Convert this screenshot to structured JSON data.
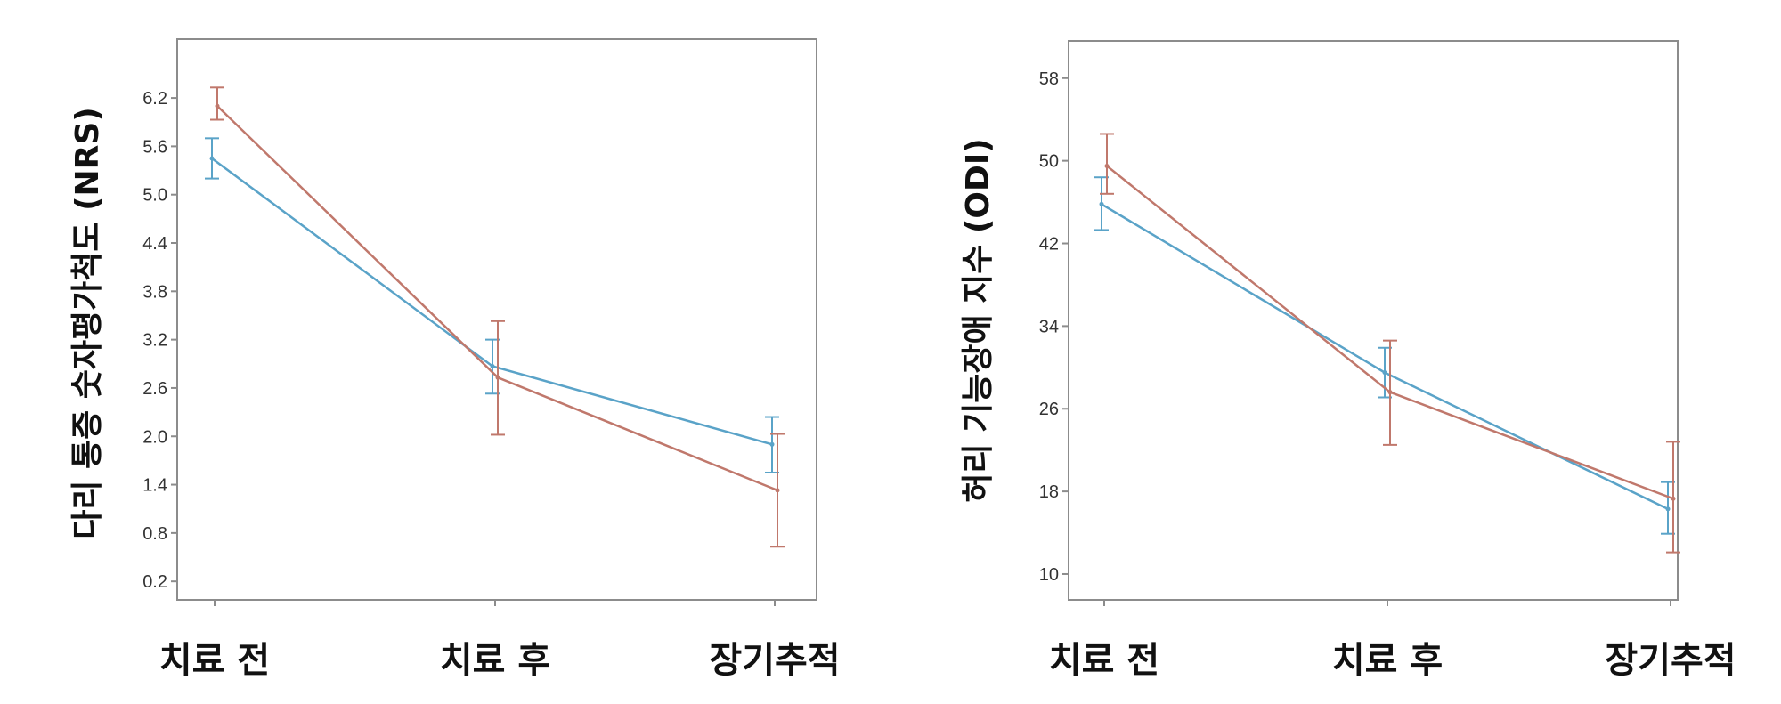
{
  "colors": {
    "series_blue": "#5aa3c8",
    "series_red": "#c0786c",
    "frame": "#8c8c8c",
    "background": "#ffffff"
  },
  "chart_data": [
    {
      "type": "line",
      "xlabel": "",
      "ylabel": "다리 통증 숫자평가척도 (NRS)",
      "categories": [
        "치료 전",
        "치료 후",
        "장기추적"
      ],
      "yticks": [
        "0.2",
        "0.8",
        "1.4",
        "2.0",
        "2.6",
        "3.2",
        "3.8",
        "4.4",
        "5.0",
        "5.6",
        "6.2"
      ],
      "ylim": [
        -0.03,
        6.93
      ],
      "grid": false,
      "legend": "none",
      "error_bars": true,
      "series": [
        {
          "color": "#5aa3c8",
          "values": [
            5.45,
            2.87,
            1.9
          ],
          "err_low": [
            5.2,
            2.53,
            1.55
          ],
          "err_high": [
            5.7,
            3.2,
            2.24
          ]
        },
        {
          "color": "#c0786c",
          "values": [
            6.1,
            2.73,
            1.33
          ],
          "err_low": [
            5.93,
            2.02,
            0.63
          ],
          "err_high": [
            6.33,
            3.43,
            2.03
          ]
        }
      ]
    },
    {
      "type": "line",
      "xlabel": "",
      "ylabel": "허리 기능장애 지수 (ODI)",
      "categories": [
        "치료 전",
        "치료 후",
        "장기추적"
      ],
      "yticks": [
        "10",
        "18",
        "26",
        "34",
        "42",
        "50",
        "58"
      ],
      "ylim": [
        7.5,
        61.6
      ],
      "grid": false,
      "legend": "none",
      "error_bars": true,
      "series": [
        {
          "color": "#5aa3c8",
          "values": [
            45.8,
            29.5,
            16.3
          ],
          "err_low": [
            43.3,
            27.1,
            13.9
          ],
          "err_high": [
            48.4,
            31.9,
            18.9
          ]
        },
        {
          "color": "#c0786c",
          "values": [
            49.5,
            27.6,
            17.3
          ],
          "err_low": [
            46.8,
            22.5,
            12.1
          ],
          "err_high": [
            52.6,
            32.6,
            22.8
          ]
        }
      ]
    }
  ]
}
